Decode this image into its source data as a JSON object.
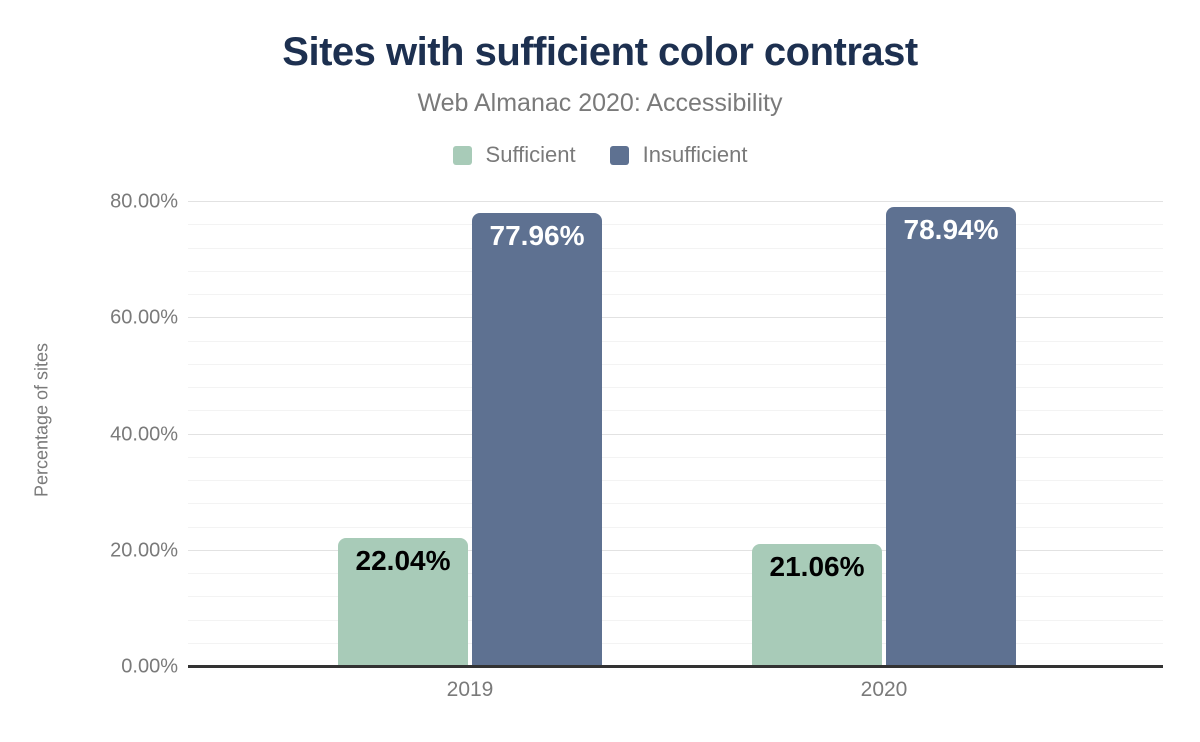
{
  "header": {
    "title": "Sites with sufficient color contrast",
    "subtitle": "Web Almanac 2020: Accessibility"
  },
  "legend": [
    {
      "label": "Sufficient",
      "color": "#a8cbb8"
    },
    {
      "label": "Insufficient",
      "color": "#5e7191"
    }
  ],
  "chart_data": {
    "type": "bar",
    "title": "Sites with sufficient color contrast",
    "subtitle": "Web Almanac 2020: Accessibility",
    "categories": [
      "2019",
      "2020"
    ],
    "series": [
      {
        "name": "Sufficient",
        "color": "#a8cbb8",
        "values": [
          22.04,
          21.06
        ],
        "data_labels": [
          "22.04%",
          "21.06%"
        ],
        "label_color": "#000000"
      },
      {
        "name": "Insufficient",
        "color": "#5e7191",
        "values": [
          77.96,
          78.94
        ],
        "data_labels": [
          "77.96%",
          "78.94%"
        ],
        "label_color": "#ffffff"
      }
    ],
    "xlabel": "",
    "ylabel": "Percentage of sites",
    "ylim": [
      0,
      80
    ],
    "y_ticks": [
      {
        "value": 0,
        "label": "0.00%"
      },
      {
        "value": 20,
        "label": "20.00%"
      },
      {
        "value": 40,
        "label": "40.00%"
      },
      {
        "value": 60,
        "label": "60.00%"
      },
      {
        "value": 80,
        "label": "80.00%"
      }
    ],
    "minor_grid_step": 4,
    "grid": true,
    "legend_position": "top"
  },
  "colors": {
    "title": "#1d3050",
    "muted_text": "#7a7a7a",
    "major_gridline": "#e2e2e2",
    "minor_gridline": "#f3f3f3",
    "axis_line": "#333333",
    "background": "#ffffff"
  }
}
